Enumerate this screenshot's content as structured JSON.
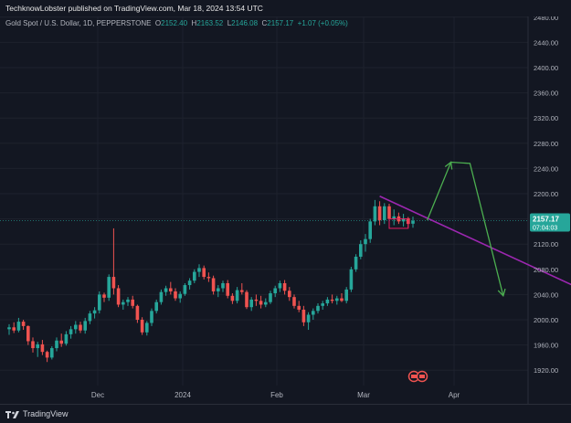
{
  "publish_info": "TechknowLobster published on TradingView.com, Mar 18, 2024 13:54 UTC",
  "symbol": {
    "name": "Gold Spot / U.S. Dollar, 1D, PEPPERSTONE",
    "o_label": "O",
    "o_value": "2152.40",
    "h_label": "H",
    "h_value": "2163.52",
    "l_label": "L",
    "l_value": "2146.08",
    "c_label": "C",
    "c_value": "2157.17",
    "change": "+1.07 (+0.05%)"
  },
  "price_badge": {
    "price": "2157.17",
    "countdown": "07:04:03"
  },
  "footer": {
    "brand": "TradingView"
  },
  "colors": {
    "background": "#131722",
    "up": "#26a69a",
    "down": "#ef5350",
    "trendline": "#9c27b0",
    "projection_arrow": "#4caf50",
    "badge": "#26a69a"
  },
  "chart_data": {
    "type": "candlestick",
    "y_axis_labels": [
      "2480.00",
      "2440.00",
      "2400.00",
      "2360.00",
      "2320.00",
      "2280.00",
      "2240.00",
      "2200.00",
      "2160.00",
      "2120.00",
      "2080.00",
      "2040.00",
      "2000.00",
      "1960.00",
      "1920.00"
    ],
    "x_axis_labels": [
      "Dec",
      "2024",
      "Feb",
      "Mar",
      "Apr"
    ],
    "ylim": [
      1895,
      2490
    ],
    "current_price": 2157.17,
    "candles": [
      [
        1985,
        1993,
        1976,
        1988
      ],
      [
        1988,
        1996,
        1979,
        1983
      ],
      [
        1983,
        2003,
        1980,
        1997
      ],
      [
        1997,
        2000,
        1984,
        1990
      ],
      [
        1990,
        1991,
        1960,
        1966
      ],
      [
        1966,
        1972,
        1948,
        1955
      ],
      [
        1955,
        1965,
        1941,
        1961
      ],
      [
        1961,
        1968,
        1944,
        1949
      ],
      [
        1949,
        1951,
        1933,
        1940
      ],
      [
        1940,
        1958,
        1937,
        1955
      ],
      [
        1955,
        1972,
        1950,
        1967
      ],
      [
        1967,
        1978,
        1957,
        1962
      ],
      [
        1962,
        1982,
        1959,
        1977
      ],
      [
        1977,
        1990,
        1970,
        1985
      ],
      [
        1985,
        1998,
        1978,
        1992
      ],
      [
        1992,
        1997,
        1979,
        1983
      ],
      [
        1983,
        2003,
        1978,
        1998
      ],
      [
        1998,
        2014,
        1993,
        2010
      ],
      [
        2010,
        2020,
        2002,
        2015
      ],
      [
        2015,
        2045,
        2010,
        2040
      ],
      [
        2040,
        2043,
        2028,
        2035
      ],
      [
        2035,
        2072,
        2030,
        2068
      ],
      [
        2068,
        2145,
        2040,
        2050
      ],
      [
        2050,
        2055,
        2020,
        2024
      ],
      [
        2024,
        2032,
        2016,
        2028
      ],
      [
        2028,
        2036,
        2022,
        2032
      ],
      [
        2032,
        2038,
        2018,
        2022
      ],
      [
        2022,
        2024,
        1995,
        2000
      ],
      [
        2000,
        2004,
        1976,
        1980
      ],
      [
        1980,
        1998,
        1975,
        1995
      ],
      [
        1995,
        2018,
        1990,
        2014
      ],
      [
        2014,
        2032,
        2010,
        2028
      ],
      [
        2028,
        2048,
        2024,
        2044
      ],
      [
        2044,
        2054,
        2038,
        2050
      ],
      [
        2050,
        2060,
        2040,
        2045
      ],
      [
        2045,
        2050,
        2030,
        2034
      ],
      [
        2034,
        2045,
        2027,
        2041
      ],
      [
        2041,
        2058,
        2038,
        2055
      ],
      [
        2055,
        2066,
        2048,
        2062
      ],
      [
        2062,
        2080,
        2058,
        2076
      ],
      [
        2076,
        2088,
        2068,
        2082
      ],
      [
        2082,
        2086,
        2064,
        2068
      ],
      [
        2068,
        2075,
        2060,
        2066
      ],
      [
        2066,
        2070,
        2040,
        2045
      ],
      [
        2045,
        2055,
        2036,
        2050
      ],
      [
        2050,
        2062,
        2044,
        2058
      ],
      [
        2058,
        2063,
        2034,
        2038
      ],
      [
        2038,
        2042,
        2025,
        2030
      ],
      [
        2030,
        2052,
        2026,
        2047
      ],
      [
        2047,
        2058,
        2040,
        2044
      ],
      [
        2044,
        2047,
        2017,
        2020
      ],
      [
        2020,
        2036,
        2014,
        2032
      ],
      [
        2032,
        2040,
        2022,
        2030
      ],
      [
        2030,
        2038,
        2018,
        2024
      ],
      [
        2024,
        2034,
        2020,
        2028
      ],
      [
        2028,
        2046,
        2025,
        2042
      ],
      [
        2042,
        2054,
        2036,
        2050
      ],
      [
        2050,
        2062,
        2044,
        2058
      ],
      [
        2058,
        2063,
        2040,
        2046
      ],
      [
        2046,
        2052,
        2030,
        2036
      ],
      [
        2036,
        2040,
        2018,
        2022
      ],
      [
        2022,
        2030,
        2012,
        2016
      ],
      [
        2016,
        2022,
        1990,
        1996
      ],
      [
        1996,
        2012,
        1984,
        2008
      ],
      [
        2008,
        2018,
        2000,
        2014
      ],
      [
        2014,
        2026,
        2010,
        2022
      ],
      [
        2022,
        2030,
        2016,
        2026
      ],
      [
        2026,
        2036,
        2022,
        2032
      ],
      [
        2032,
        2040,
        2026,
        2030
      ],
      [
        2030,
        2038,
        2024,
        2034
      ],
      [
        2034,
        2042,
        2028,
        2030
      ],
      [
        2030,
        2052,
        2026,
        2048
      ],
      [
        2048,
        2084,
        2044,
        2080
      ],
      [
        2080,
        2104,
        2076,
        2100
      ],
      [
        2100,
        2126,
        2096,
        2120
      ],
      [
        2120,
        2136,
        2108,
        2128
      ],
      [
        2128,
        2160,
        2122,
        2156
      ],
      [
        2156,
        2190,
        2150,
        2180
      ],
      [
        2180,
        2188,
        2150,
        2158
      ],
      [
        2158,
        2185,
        2152,
        2180
      ],
      [
        2180,
        2184,
        2155,
        2160
      ],
      [
        2160,
        2175,
        2150,
        2164
      ],
      [
        2164,
        2170,
        2152,
        2156
      ],
      [
        2156,
        2168,
        2148,
        2161
      ],
      [
        2161,
        2163,
        2146,
        2152
      ],
      [
        2152.4,
        2163.52,
        2146.08,
        2157.17
      ]
    ],
    "trendline": {
      "from": [
        78,
        2196
      ],
      "to": [
        122,
        2043
      ]
    },
    "projection_arrow": {
      "points": [
        [
          88,
          2158
        ],
        [
          93,
          2250
        ],
        [
          97,
          2248
        ],
        [
          104,
          2038
        ]
      ]
    },
    "consolidation_box": {
      "x_from": 80,
      "x_to": 84,
      "top": 2160,
      "bottom": 2145
    },
    "event_markers": [
      "icon",
      "icon"
    ]
  }
}
